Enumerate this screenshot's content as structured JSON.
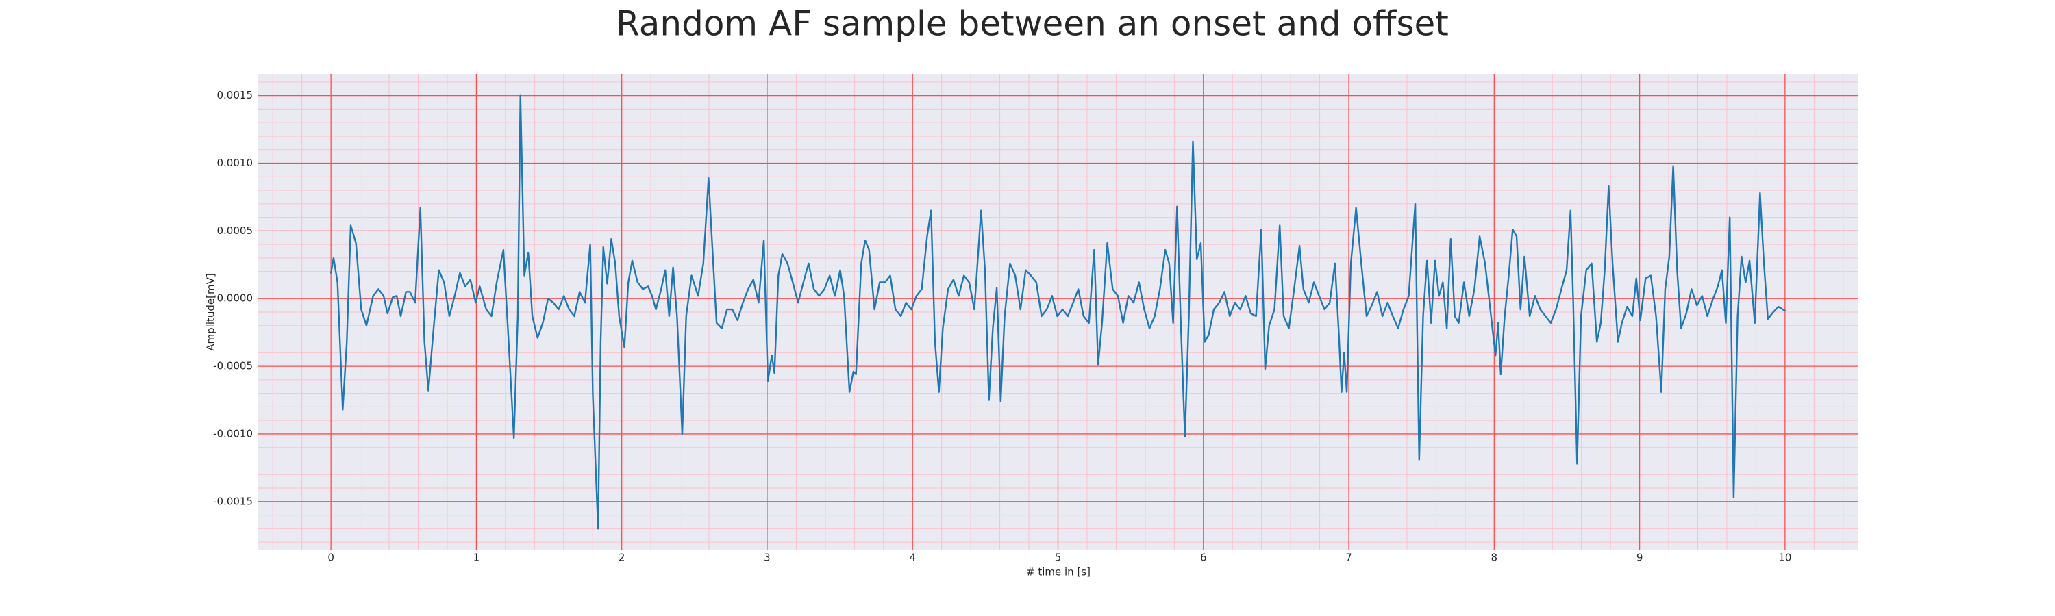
{
  "chart_data": {
    "type": "line",
    "title": "Random AF sample between an onset and offset",
    "xlabel": "# time in [s]",
    "ylabel": "Amplitude[mV]",
    "color": "#1f77b4",
    "background": "#eaeaf2",
    "grid": true,
    "grid_color": "#ff4d4d",
    "minor_grid_color": "#ffc0cb",
    "xlim": [
      -0.5,
      10.5
    ],
    "ylim": [
      -0.00186,
      0.00166
    ],
    "xticks": [
      0,
      1,
      2,
      3,
      4,
      5,
      6,
      7,
      8,
      9,
      10
    ],
    "yticks": [
      -0.0015,
      {
        "value": -0.001,
        "label": "-0.0010"
      },
      -0.0005,
      {
        "value": 0,
        "label": "0.0000"
      },
      0.0005,
      {
        "value": 0.001,
        "label": "0.0010"
      },
      0.0015
    ],
    "minor_xticks": [
      -0.4,
      -0.2,
      0.2,
      0.4,
      0.6,
      0.8,
      1.2,
      1.4,
      1.6,
      1.8,
      2.2,
      2.4,
      2.6,
      2.8,
      3.2,
      3.4,
      3.6,
      3.8,
      4.2,
      4.4,
      4.6,
      4.8,
      5.2,
      5.4,
      5.6,
      5.8,
      6.2,
      6.4,
      6.6,
      6.8,
      7.2,
      7.4,
      7.6,
      7.8,
      8.2,
      8.4,
      8.6,
      8.8,
      9.2,
      9.4,
      9.6,
      9.8,
      10.2,
      10.4
    ],
    "minor_yticks": [
      -0.0018,
      -0.0017,
      -0.0016,
      -0.0014,
      -0.0013,
      -0.0012,
      -0.0011,
      -0.0009,
      -0.0008,
      -0.0007,
      -0.0006,
      -0.0004,
      -0.0003,
      -0.0002,
      -0.0001,
      0.0001,
      0.0002,
      0.0003,
      0.0004,
      0.0006,
      0.0007,
      0.0008,
      0.0009,
      0.0011,
      0.0012,
      0.0013,
      0.0014,
      0.0016
    ],
    "x": [
      0,
      0.018,
      0.045,
      0.081,
      0.109,
      0.136,
      0.172,
      0.208,
      0.244,
      0.29,
      0.326,
      0.362,
      0.389,
      0.425,
      0.452,
      0.48,
      0.516,
      0.543,
      0.579,
      0.615,
      0.643,
      0.67,
      0.706,
      0.742,
      0.778,
      0.814,
      0.851,
      0.887,
      0.923,
      0.959,
      0.995,
      1.023,
      1.068,
      1.104,
      1.14,
      1.186,
      1.222,
      1.258,
      1.285,
      1.303,
      1.33,
      1.357,
      1.385,
      1.421,
      1.457,
      1.493,
      1.529,
      1.566,
      1.602,
      1.638,
      1.674,
      1.71,
      1.747,
      1.783,
      1.801,
      1.837,
      1.855,
      1.873,
      1.9,
      1.928,
      1.955,
      1.982,
      2.018,
      2.045,
      2.072,
      2.109,
      2.145,
      2.181,
      2.208,
      2.235,
      2.271,
      2.299,
      2.326,
      2.353,
      2.38,
      2.416,
      2.443,
      2.48,
      2.525,
      2.561,
      2.597,
      2.624,
      2.652,
      2.688,
      2.724,
      2.76,
      2.796,
      2.833,
      2.869,
      2.905,
      2.941,
      2.977,
      3.005,
      3.032,
      3.05,
      3.077,
      3.104,
      3.14,
      3.176,
      3.213,
      3.249,
      3.285,
      3.321,
      3.357,
      3.394,
      3.43,
      3.466,
      3.502,
      3.529,
      3.566,
      3.593,
      3.611,
      3.647,
      3.674,
      3.701,
      3.738,
      3.774,
      3.81,
      3.846,
      3.882,
      3.919,
      3.955,
      3.991,
      4.027,
      4.063,
      4.1,
      4.127,
      4.154,
      4.181,
      4.208,
      4.244,
      4.281,
      4.317,
      4.353,
      4.389,
      4.425,
      4.471,
      4.498,
      4.525,
      4.552,
      4.579,
      4.606,
      4.633,
      4.67,
      4.706,
      4.742,
      4.778,
      4.814,
      4.851,
      4.887,
      4.923,
      4.959,
      4.995,
      5.032,
      5.068,
      5.104,
      5.14,
      5.176,
      5.213,
      5.249,
      5.276,
      5.303,
      5.339,
      5.376,
      5.412,
      5.448,
      5.484,
      5.52,
      5.557,
      5.593,
      5.629,
      5.665,
      5.701,
      5.738,
      5.765,
      5.792,
      5.819,
      5.846,
      5.873,
      5.9,
      5.928,
      5.955,
      5.982,
      6.009,
      6.036,
      6.072,
      6.109,
      6.145,
      6.181,
      6.217,
      6.253,
      6.29,
      6.326,
      6.362,
      6.398,
      6.425,
      6.452,
      6.489,
      6.525,
      6.552,
      6.588,
      6.624,
      6.661,
      6.688,
      6.724,
      6.76,
      6.796,
      6.833,
      6.869,
      6.905,
      6.932,
      6.95,
      6.968,
      6.986,
      7.014,
      7.05,
      7.086,
      7.122,
      7.158,
      7.195,
      7.231,
      7.267,
      7.303,
      7.339,
      7.376,
      7.412,
      7.457,
      7.484,
      7.511,
      7.538,
      7.566,
      7.593,
      7.62,
      7.647,
      7.674,
      7.701,
      7.729,
      7.756,
      7.792,
      7.828,
      7.864,
      7.9,
      7.937,
      7.973,
      8.009,
      8.027,
      8.045,
      8.072,
      8.1,
      8.127,
      8.154,
      8.181,
      8.208,
      8.244,
      8.281,
      8.317,
      8.353,
      8.389,
      8.425,
      8.462,
      8.498,
      8.525,
      8.543,
      8.57,
      8.597,
      8.633,
      8.67,
      8.706,
      8.733,
      8.76,
      8.787,
      8.814,
      8.851,
      8.878,
      8.914,
      8.95,
      8.977,
      9.005,
      9.041,
      9.077,
      9.113,
      9.149,
      9.176,
      9.204,
      9.231,
      9.258,
      9.285,
      9.321,
      9.357,
      9.394,
      9.43,
      9.466,
      9.502,
      9.538,
      9.566,
      9.593,
      9.62,
      9.647,
      9.674,
      9.701,
      9.729,
      9.756,
      9.792,
      9.828,
      9.855,
      9.882,
      9.919,
      9.955,
      10
    ],
    "values": [
      0.00019,
      0.0003,
      0.00012,
      -0.00082,
      -0.00032,
      0.00054,
      0.00041,
      -8e-05,
      -0.0002,
      2e-05,
      7e-05,
      2e-05,
      -0.00011,
      1e-05,
      2e-05,
      -0.00013,
      5e-05,
      5e-05,
      -3e-05,
      0.00067,
      -0.00032,
      -0.00068,
      -0.00022,
      0.00021,
      0.00012,
      -0.00013,
      2e-05,
      0.00019,
      9e-05,
      0.00014,
      -3e-05,
      9e-05,
      -8e-05,
      -0.00013,
      0.00012,
      0.00036,
      -0.00032,
      -0.00103,
      -0.00013,
      0.0015,
      0.00017,
      0.00034,
      -0.00013,
      -0.00029,
      -0.00018,
      0,
      -3e-05,
      -8e-05,
      2e-05,
      -8e-05,
      -0.00013,
      5e-05,
      -3e-05,
      0.0004,
      -0.00071,
      -0.0017,
      -0.00032,
      0.00038,
      0.00011,
      0.00044,
      0.00026,
      -0.00013,
      -0.00036,
      0.00012,
      0.00028,
      0.00012,
      7e-05,
      9e-05,
      2e-05,
      -8e-05,
      7e-05,
      0.00021,
      -0.00013,
      0.00023,
      -0.00013,
      -0.001,
      -0.00013,
      0.00017,
      2e-05,
      0.00026,
      0.00089,
      0.00036,
      -0.00018,
      -0.00022,
      -8e-05,
      -8e-05,
      -0.00016,
      -3e-05,
      7e-05,
      0.00014,
      -3e-05,
      0.00043,
      -0.00061,
      -0.00042,
      -0.00055,
      0.00017,
      0.00033,
      0.00026,
      0.00012,
      -3e-05,
      0.00012,
      0.00026,
      7e-05,
      2e-05,
      7e-05,
      0.00017,
      2e-05,
      0.00021,
      2e-05,
      -0.00069,
      -0.00054,
      -0.00056,
      0.00026,
      0.00043,
      0.00036,
      -8e-05,
      0.00012,
      0.00012,
      0.00017,
      -8e-05,
      -0.00013,
      -3e-05,
      -8e-05,
      2e-05,
      7e-05,
      0.00046,
      0.00065,
      -0.00032,
      -0.00069,
      -0.00022,
      7e-05,
      0.00014,
      2e-05,
      0.00017,
      0.00012,
      -8e-05,
      0.00065,
      0.00021,
      -0.00075,
      -0.00022,
      8e-05,
      -0.00076,
      -0.00013,
      0.00026,
      0.00017,
      -8e-05,
      0.00021,
      0.00017,
      0.00012,
      -0.00013,
      -8e-05,
      2e-05,
      -0.00013,
      -8e-05,
      -0.00013,
      -3e-05,
      7e-05,
      -0.00013,
      -0.00018,
      0.00036,
      -0.00049,
      -0.00018,
      0.00041,
      7e-05,
      2e-05,
      -0.00018,
      2e-05,
      -3e-05,
      0.00012,
      -8e-05,
      -0.00022,
      -0.00013,
      7e-05,
      0.00036,
      0.00026,
      -0.00018,
      0.00068,
      -0.00022,
      -0.00102,
      -0.00013,
      0.00116,
      0.00029,
      0.00041,
      -0.00032,
      -0.00027,
      -8e-05,
      -3e-05,
      5e-05,
      -0.00013,
      -3e-05,
      -8e-05,
      2e-05,
      -0.00011,
      -0.00013,
      0.00051,
      -0.00052,
      -0.0002,
      -8e-05,
      0.00054,
      -0.00013,
      -0.00022,
      7e-05,
      0.00039,
      7e-05,
      -3e-05,
      0.00012,
      2e-05,
      -8e-05,
      -3e-05,
      0.00026,
      -0.00027,
      -0.00069,
      -0.0004,
      -0.00069,
      0.00026,
      0.00067,
      0.00026,
      -0.00013,
      -5e-05,
      5e-05,
      -0.00013,
      -3e-05,
      -0.00013,
      -0.00022,
      -8e-05,
      2e-05,
      0.0007,
      -0.00119,
      -0.00013,
      0.00028,
      -0.00018,
      0.00028,
      2e-05,
      0.00012,
      -0.00022,
      0.00044,
      -0.00013,
      -0.00018,
      0.00012,
      -0.00013,
      7e-05,
      0.00046,
      0.00026,
      -8e-05,
      -0.00042,
      -0.00018,
      -0.00056,
      -0.00013,
      0.00017,
      0.00051,
      0.00046,
      -8e-05,
      0.00031,
      -0.00013,
      2e-05,
      -8e-05,
      -0.00013,
      -0.00018,
      -8e-05,
      7e-05,
      0.00021,
      0.00065,
      -1e-05,
      -0.00122,
      -0.00013,
      0.00021,
      0.00026,
      -0.00032,
      -0.00018,
      0.00021,
      0.00083,
      0.00026,
      -0.00032,
      -0.00018,
      -6e-05,
      -0.00013,
      0.00015,
      -0.00016,
      0.00015,
      0.00017,
      -0.00013,
      -0.00069,
      7e-05,
      0.00031,
      0.00098,
      0.00021,
      -0.00022,
      -0.00011,
      7e-05,
      -5e-05,
      2e-05,
      -0.00013,
      -1e-05,
      9e-05,
      0.00021,
      -0.00018,
      0.0006,
      -0.00147,
      -0.00013,
      0.00031,
      0.00012,
      0.00028,
      -0.00018,
      0.00078,
      0.00026,
      -0.00015,
      -0.0001,
      -6e-05,
      -9e-05
    ]
  }
}
